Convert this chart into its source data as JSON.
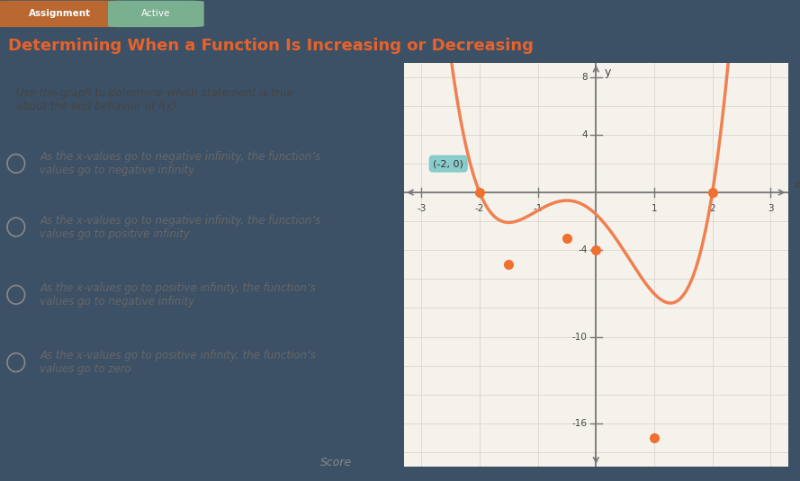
{
  "title": "Determining When a Function Is Increasing or Decreasing",
  "subtitle_instruction": "Use the graph to determine which statement is true\nabout the end behavior of f(x).",
  "options": [
    "As the x-values go to negative infinity, the function’s\nvalues go to negative infinity",
    "As the x-values go to negative infinity, the function’s\nvalues go to positive infinity",
    "As the x-values go to positive infinity, the function’s\nvalues go to negative infinity",
    "As the x-values go to positive infinity, the function’s\nvalues go to zero"
  ],
  "tab_assignment": "Assignment",
  "tab_active": "Active",
  "curve_color": "#F08050",
  "point_color": "#F07030",
  "annotation_box_color": "#7EC8C8",
  "annotation_text": "(-2, 0)",
  "graph_bg": "#F5F2EC",
  "grid_color": "#DEDAD2",
  "axis_color": "#777777",
  "text_color_dark": "#444444",
  "text_color_option": "#666666",
  "title_color": "#E8622A",
  "page_bg": "#3D5166",
  "content_bg": "#EAE8E0",
  "tab_assignment_bg": "#B86830",
  "tab_active_bg": "#7AB090",
  "xlim": [
    -3.3,
    3.3
  ],
  "ylim": [
    -19,
    9
  ],
  "xticks": [
    -3,
    -2,
    -1,
    1,
    2,
    3
  ],
  "yticks": [
    -16,
    -10,
    -4,
    4,
    8
  ],
  "a_coef": 0.96,
  "b_coef": -3.62,
  "c_coef": -3.84,
  "d_coef": -1.52,
  "key_points": [
    [
      -2,
      0
    ],
    [
      -1.5,
      -5.0
    ],
    [
      -0.5,
      -3.2
    ],
    [
      0,
      -4.0
    ],
    [
      2,
      0
    ],
    [
      1,
      -17.0
    ]
  ],
  "footer_text": "Score"
}
